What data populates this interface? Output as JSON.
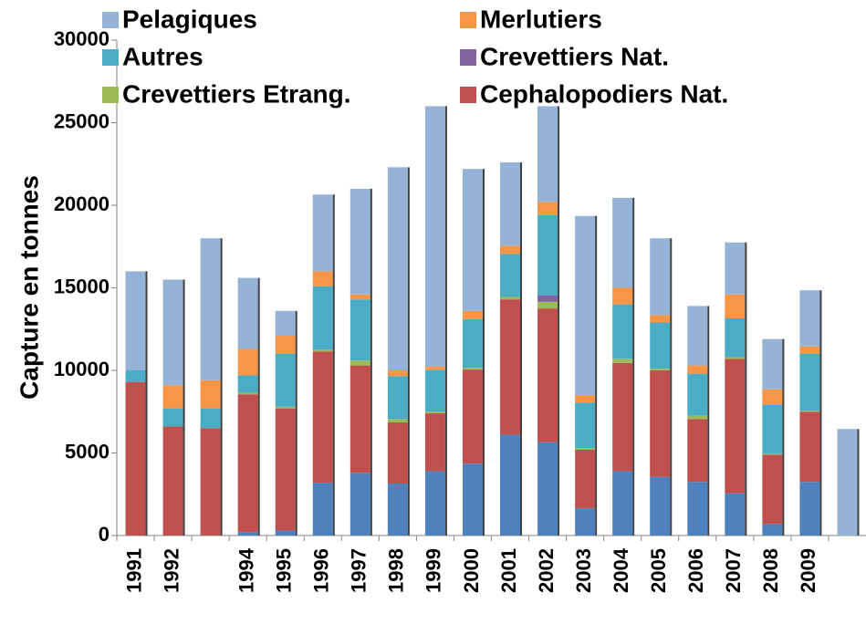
{
  "chart_data": {
    "type": "stacked_bar",
    "y_label": "Capture en tonnes",
    "categories": [
      "1991",
      "1992",
      null,
      "1994",
      "1995",
      "1996",
      "1997",
      "1998",
      "1999",
      "2000",
      "2001",
      "2002",
      "2003",
      "2004",
      "2005",
      "2006",
      "2007",
      "2008",
      "2009",
      null
    ],
    "series": [
      {
        "name": null,
        "color": "#4f81bd",
        "values": [
          0,
          0,
          0,
          200,
          300,
          3200,
          3800,
          3150,
          3900,
          4350,
          6100,
          5650,
          1650,
          3900,
          3550,
          3250,
          2550,
          700,
          3250,
          0
        ]
      },
      {
        "name": "Cephalopodiers Nat.",
        "color": "#c0504d",
        "values": [
          9300,
          6600,
          6500,
          8350,
          7400,
          7950,
          6500,
          3700,
          3500,
          5700,
          8200,
          8100,
          3550,
          6550,
          6450,
          3800,
          8150,
          4200,
          4250,
          0
        ]
      },
      {
        "name": "Crevettiers Etrang.",
        "color": "#9bbb59",
        "values": [
          0,
          0,
          0,
          100,
          100,
          100,
          300,
          200,
          100,
          100,
          150,
          400,
          100,
          250,
          100,
          200,
          100,
          50,
          50,
          0
        ]
      },
      {
        "name": "Crevettiers Nat.",
        "color": "#8064a2",
        "values": [
          0,
          0,
          0,
          0,
          0,
          0,
          0,
          0,
          0,
          0,
          0,
          400,
          0,
          0,
          0,
          0,
          0,
          0,
          0,
          0
        ]
      },
      {
        "name": "Autres",
        "color": "#4bacc6",
        "values": [
          700,
          1100,
          1200,
          1050,
          3200,
          3850,
          3700,
          2600,
          2500,
          2950,
          2600,
          4850,
          2750,
          3300,
          2800,
          2550,
          2350,
          2950,
          3450,
          0
        ]
      },
      {
        "name": "Merlutiers",
        "color": "#f79646",
        "values": [
          0,
          1400,
          1700,
          1600,
          1100,
          900,
          300,
          350,
          200,
          500,
          500,
          800,
          450,
          1000,
          450,
          500,
          1450,
          950,
          450,
          0
        ]
      },
      {
        "name": "Pelagiques",
        "color": "#95b3d7",
        "values": [
          6000,
          6400,
          8600,
          4300,
          1500,
          4650,
          6400,
          12300,
          15800,
          8600,
          5050,
          5800,
          10850,
          5450,
          4650,
          3600,
          3150,
          3050,
          3400,
          6450
        ]
      }
    ],
    "ylim": [
      0,
      30000
    ],
    "yticks": [
      0,
      5000,
      10000,
      15000,
      20000,
      25000,
      30000
    ],
    "legend": "top"
  }
}
